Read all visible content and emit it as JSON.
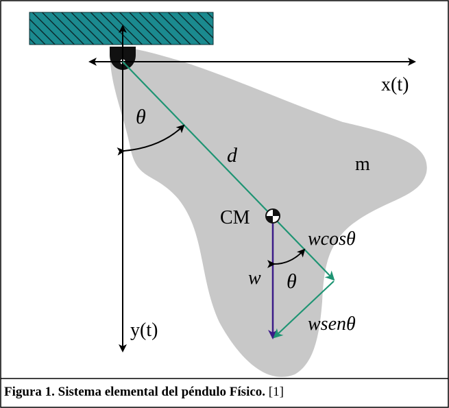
{
  "diagram": {
    "labels": {
      "x_axis": "x(t)",
      "y_axis": "y(t)",
      "angle_top": "θ",
      "distance": "d",
      "mass": "m",
      "center_of_mass": "CM",
      "weight": "w",
      "weight_cos": "wcosθ",
      "weight_sin": "wsenθ",
      "angle_bottom": "θ"
    },
    "colors": {
      "body_fill": "#c8c8c8",
      "ceiling_fill": "#1b8a8f",
      "arm_line": "#1e9473",
      "weight_vector": "#3b1b87",
      "axes": "#000000"
    }
  },
  "caption": {
    "bold_text": "Figura 1. Sistema elemental del péndulo Físico.",
    "reference": " [1]"
  }
}
